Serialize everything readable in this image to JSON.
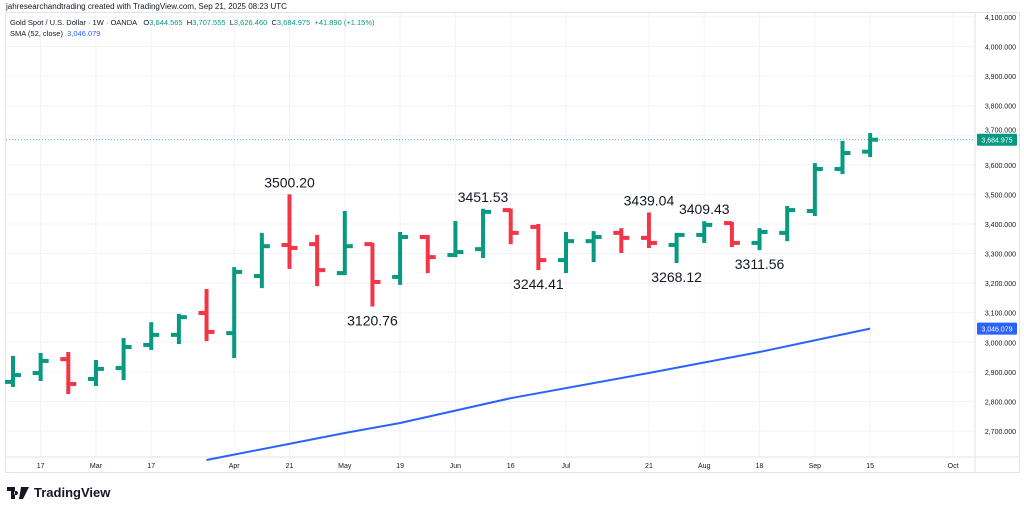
{
  "credit": "jahresearchandtrading created with TradingView.com, Sep 21, 2025 08:23 UTC",
  "legend": {
    "symbol": "Gold Spot / U.S. Dollar · 1W · OANDA",
    "o_label": "O",
    "o": "3,644.565",
    "h_label": "H",
    "h": "3,707.555",
    "l_label": "L",
    "l": "3,626.460",
    "c_label": "C",
    "c": "3,684.975",
    "change": "+41.890 (+1.15%)",
    "sma_label": "SMA (52, close)",
    "sma_value": "3,046.079"
  },
  "logo_text": "TradingView",
  "colors": {
    "up": "#089981",
    "down": "#f23645",
    "sma": "#2962ff",
    "grid": "#f0f3fa"
  },
  "chart_data": {
    "type": "ohlc",
    "timeframe": "1W",
    "y_ticks": [
      "4,100.000",
      "4,000.000",
      "3,900.000",
      "3,800.000",
      "3,700.000",
      "3,600.000",
      "3,500.000",
      "3,400.000",
      "3,300.000",
      "3,200.000",
      "3,100.000",
      "3,000.000",
      "2,900.000",
      "2,800.000",
      "2,700.000"
    ],
    "y_tick_values": [
      4100,
      4000,
      3900,
      3800,
      3700,
      3600,
      3500,
      3400,
      3300,
      3200,
      3100,
      3000,
      2900,
      2800,
      2700
    ],
    "ylim": [
      2620,
      4150
    ],
    "x_ticks": [
      {
        "label": "17",
        "i": 1
      },
      {
        "label": "Mar",
        "i": 3
      },
      {
        "label": "17",
        "i": 5
      },
      {
        "label": "Apr",
        "i": 8
      },
      {
        "label": "21",
        "i": 10
      },
      {
        "label": "May",
        "i": 12
      },
      {
        "label": "19",
        "i": 14
      },
      {
        "label": "Jun",
        "i": 16
      },
      {
        "label": "16",
        "i": 18
      },
      {
        "label": "Jul",
        "i": 20
      },
      {
        "label": "21",
        "i": 23
      },
      {
        "label": "Aug",
        "i": 25
      },
      {
        "label": "18",
        "i": 27
      },
      {
        "label": "Sep",
        "i": 29
      },
      {
        "label": "15",
        "i": 31
      },
      {
        "label": "Oct",
        "i": 34
      }
    ],
    "ohlc": [
      [
        2866,
        2954,
        2849,
        2889
      ],
      [
        2896,
        2964,
        2869,
        2937
      ],
      [
        2943,
        2967,
        2825,
        2859
      ],
      [
        2876,
        2940,
        2852,
        2910
      ],
      [
        2913,
        3014,
        2872,
        2984
      ],
      [
        2991,
        3068,
        2974,
        3025
      ],
      [
        3025,
        3096,
        2994,
        3085
      ],
      [
        3099,
        3180,
        3004,
        3035
      ],
      [
        3031,
        3254,
        2947,
        3238
      ],
      [
        3224,
        3370,
        3183,
        3325
      ],
      [
        3329,
        3500.2,
        3248,
        3319
      ],
      [
        3332,
        3363,
        3190,
        3244
      ],
      [
        3234,
        3444,
        3227,
        3325
      ],
      [
        3332,
        3336,
        3120.76,
        3204
      ],
      [
        3221,
        3373,
        3194,
        3356
      ],
      [
        3356,
        3363,
        3234,
        3288
      ],
      [
        3295,
        3410,
        3288,
        3305
      ],
      [
        3315,
        3451.53,
        3285,
        3441
      ],
      [
        3447,
        3452,
        3332,
        3370
      ],
      [
        3390,
        3400,
        3244.41,
        3278
      ],
      [
        3278,
        3373,
        3234,
        3342
      ],
      [
        3342,
        3376,
        3271,
        3356
      ],
      [
        3370,
        3386,
        3302,
        3353
      ],
      [
        3353,
        3439.04,
        3319,
        3336
      ],
      [
        3329,
        3370,
        3268.12,
        3363
      ],
      [
        3363,
        3409.43,
        3336,
        3397
      ],
      [
        3403,
        3407,
        3322,
        3336
      ],
      [
        3336,
        3386,
        3311.56,
        3373
      ],
      [
        3370,
        3461,
        3342,
        3447
      ],
      [
        3444,
        3606,
        3427,
        3586
      ],
      [
        3586,
        3681,
        3569,
        3640
      ],
      [
        3644.565,
        3707.555,
        3626.46,
        3684.975
      ]
    ],
    "sma": [
      [
        7,
        2602
      ],
      [
        12,
        2693
      ],
      [
        14,
        2727
      ],
      [
        18,
        2811
      ],
      [
        23,
        2896
      ],
      [
        27,
        2967
      ],
      [
        31,
        3046.079
      ]
    ],
    "annotations": [
      {
        "text": "3500.20",
        "i": 10,
        "value": 3500.2,
        "pos": "above"
      },
      {
        "text": "3120.76",
        "i": 13,
        "value": 3120.76,
        "pos": "below"
      },
      {
        "text": "3451.53",
        "i": 17,
        "value": 3451.53,
        "pos": "above"
      },
      {
        "text": "3244.41",
        "i": 19,
        "value": 3244.41,
        "pos": "below"
      },
      {
        "text": "3439.04",
        "i": 23,
        "value": 3439.04,
        "pos": "above"
      },
      {
        "text": "3268.12",
        "i": 24,
        "value": 3268.12,
        "pos": "below"
      },
      {
        "text": "3409.43",
        "i": 25,
        "value": 3409.43,
        "pos": "above"
      },
      {
        "text": "3311.56",
        "i": 27,
        "value": 3311.56,
        "pos": "below"
      }
    ],
    "last_price_label": "3,684.975",
    "sma_price_label": "3,046.079"
  }
}
